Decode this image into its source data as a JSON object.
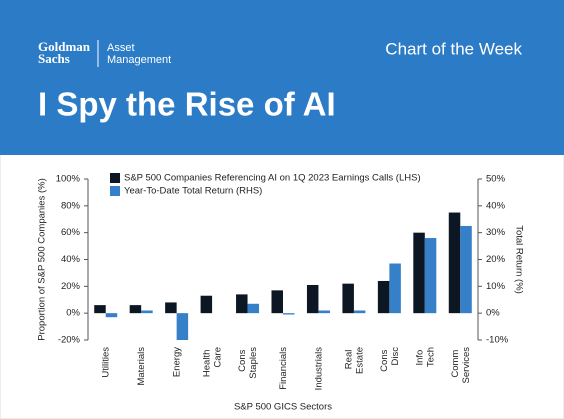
{
  "header": {
    "brand": "Goldman Sachs",
    "division": "Asset Management",
    "tag": "Chart of the Week"
  },
  "chart_data": {
    "type": "bar",
    "title": "I Spy the Rise of AI",
    "x_label": "S&P 500 GICS Sectors",
    "y_label": "Proportion of S&P 500 Companies (%)",
    "y2_label": "Total Return (%)",
    "categories": [
      "Utilities",
      "Materials",
      "Energy",
      "Health Care",
      "Cons Staples",
      "Financials",
      "Industrials",
      "Real Estate",
      "Cons Disc",
      "Info Tech",
      "Comm Services"
    ],
    "series": [
      {
        "name": "S&P 500 Companies Referencing AI on 1Q 2023 Earnings Calls (LHS)",
        "color": "#0d1724",
        "values": [
          6,
          6,
          8,
          13,
          14,
          17,
          21,
          22,
          24,
          60,
          75
        ]
      },
      {
        "name": "Year-To-Date Total Return (RHS)",
        "color": "#3580c9",
        "axis": "y2",
        "values": [
          -1.5,
          1,
          -10,
          0,
          3.5,
          -0.5,
          1,
          1,
          18.5,
          28,
          32.5
        ]
      }
    ],
    "ylim": [
      -20,
      100
    ],
    "yticks": [
      {
        "value": -20,
        "label": "-20%"
      },
      {
        "value": 0,
        "label": "0%"
      },
      {
        "value": 20,
        "label": "20%"
      },
      {
        "value": 40,
        "label": "40%"
      },
      {
        "value": 60,
        "label": "60%"
      },
      {
        "value": 80,
        "label": "80%"
      },
      {
        "value": 100,
        "label": "100%"
      }
    ],
    "y2lim": [
      -10,
      50
    ],
    "y2ticks": [
      {
        "value": -10,
        "label": "-10%"
      },
      {
        "value": 0,
        "label": "0%"
      },
      {
        "value": 10,
        "label": "10%"
      },
      {
        "value": 20,
        "label": "20%"
      },
      {
        "value": 30,
        "label": "30%"
      },
      {
        "value": 40,
        "label": "40%"
      },
      {
        "value": 50,
        "label": "50%"
      }
    ],
    "grid": false,
    "legend": "top-left"
  }
}
